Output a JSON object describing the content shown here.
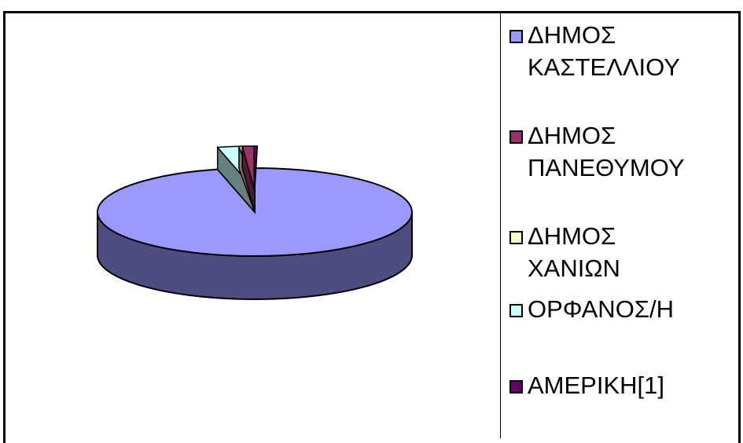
{
  "chart_data": {
    "type": "pie",
    "style": "3d",
    "legend_position": "right",
    "series": [
      {
        "name": "ΔΗΜΟΣ ΚΑΣΤΕΛΛΙΟΥ",
        "value": 96.2,
        "color": "#9999ff",
        "side_color": "#4d4d80"
      },
      {
        "name": "ΔΗΜΟΣ ΠΑΝΕΘΥΜΟΥ",
        "value": 1.2,
        "color": "#993366",
        "side_color": "#4d1a33"
      },
      {
        "name": "ΔΗΜΟΣ ΧΑΝΙΩΝ",
        "value": 0.2,
        "color": "#ffffcc",
        "side_color": "#808066"
      },
      {
        "name": "ΟΡΦΑΝΟΣ/Η",
        "value": 2.2,
        "color": "#ccffff",
        "side_color": "#668080"
      },
      {
        "name": "ΑΜΕΡΙΚΗ[1]",
        "value": 0.2,
        "color": "#660066",
        "side_color": "#330033"
      }
    ],
    "legend_labels": [
      "ΔΗΜΟΣ\nΚΑΣΤΕΛΛΙΟΥ",
      "ΔΗΜΟΣ\nΠΑΝΕΘΥΜΟΥ",
      "ΔΗΜΟΣ\nΧΑΝΙΩΝ",
      "ΟΡΦΑΝΟΣ/Η",
      "ΑΜΕΡΙΚΗ[1]"
    ]
  }
}
